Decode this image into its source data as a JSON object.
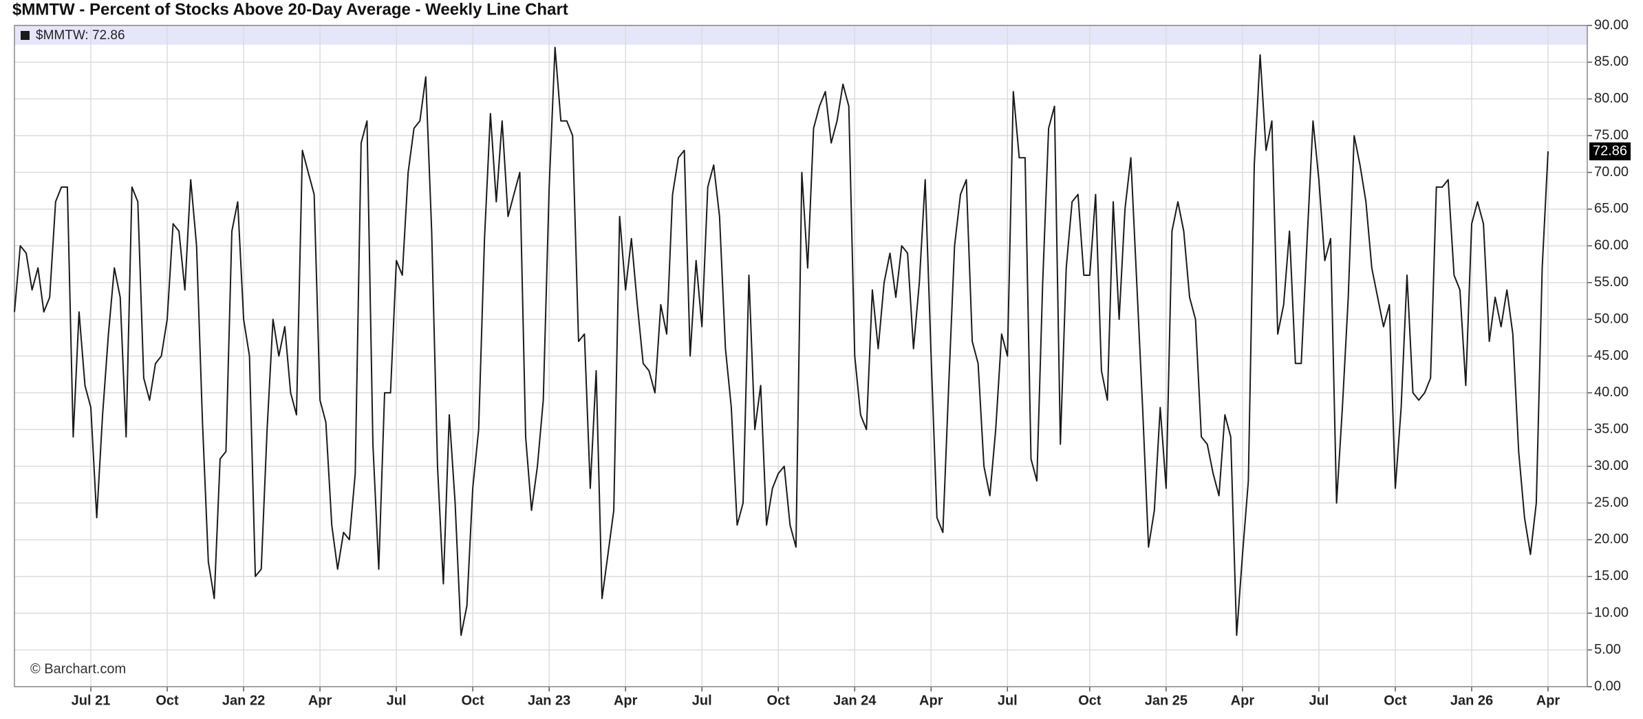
{
  "chart_data": {
    "type": "line",
    "title": "$MMTW - Percent of Stocks Above 20-Day Average - Weekly Line Chart",
    "watermark": "© Barchart.com",
    "last_label": "72.86",
    "categories": [
      null,
      null,
      null,
      null,
      null,
      null,
      null,
      null,
      null,
      null,
      null,
      null,
      null,
      "Jul 21",
      null,
      null,
      null,
      null,
      null,
      null,
      null,
      null,
      null,
      null,
      null,
      null,
      "Oct",
      null,
      null,
      null,
      null,
      null,
      null,
      null,
      null,
      null,
      null,
      null,
      null,
      "Jan 22",
      null,
      null,
      null,
      null,
      null,
      null,
      null,
      null,
      null,
      null,
      null,
      null,
      "Apr",
      null,
      null,
      null,
      null,
      null,
      null,
      null,
      null,
      null,
      null,
      null,
      null,
      "Jul",
      null,
      null,
      null,
      null,
      null,
      null,
      null,
      null,
      null,
      null,
      null,
      null,
      "Oct",
      null,
      null,
      null,
      null,
      null,
      null,
      null,
      null,
      null,
      null,
      null,
      null,
      "Jan 23",
      null,
      null,
      null,
      null,
      null,
      null,
      null,
      null,
      null,
      null,
      null,
      null,
      "Apr",
      null,
      null,
      null,
      null,
      null,
      null,
      null,
      null,
      null,
      null,
      null,
      null,
      "Jul",
      null,
      null,
      null,
      null,
      null,
      null,
      null,
      null,
      null,
      null,
      null,
      null,
      "Oct",
      null,
      null,
      null,
      null,
      null,
      null,
      null,
      null,
      null,
      null,
      null,
      null,
      "Jan 24",
      null,
      null,
      null,
      null,
      null,
      null,
      null,
      null,
      null,
      null,
      null,
      null,
      "Apr",
      null,
      null,
      null,
      null,
      null,
      null,
      null,
      null,
      null,
      null,
      null,
      null,
      "Jul",
      null,
      null,
      null,
      null,
      null,
      null,
      null,
      null,
      null,
      null,
      null,
      null,
      null,
      "Oct",
      null,
      null,
      null,
      null,
      null,
      null,
      null,
      null,
      null,
      null,
      null,
      null,
      "Jan 25",
      null,
      null,
      null,
      null,
      null,
      null,
      null,
      null,
      null,
      null,
      null,
      null,
      "Apr",
      null,
      null,
      null,
      null,
      null,
      null,
      null,
      null,
      null,
      null,
      null,
      null,
      "Jul",
      null,
      null,
      null,
      null,
      null,
      null,
      null,
      null,
      null,
      null,
      null,
      null,
      "Oct",
      null,
      null,
      null,
      null,
      null,
      null,
      null,
      null,
      null,
      null,
      null,
      null,
      "Jan 26",
      null,
      null,
      null,
      null,
      null,
      null,
      null,
      null,
      null,
      null,
      null,
      null,
      "Apr"
    ],
    "series": [
      {
        "name": "$MMTW",
        "color": "#1a1a1a",
        "values": [
          51,
          60,
          59,
          54,
          57,
          51,
          53,
          66,
          68,
          68,
          34,
          51,
          41,
          38,
          23,
          37,
          48,
          57,
          53,
          34,
          68,
          66,
          42,
          39,
          44,
          45,
          50,
          63,
          62,
          54,
          69,
          60,
          36,
          17,
          12,
          31,
          32,
          62,
          66,
          50,
          45,
          15,
          16,
          35,
          50,
          45,
          49,
          40,
          37,
          73,
          70,
          67,
          39,
          36,
          22,
          16,
          21,
          20,
          29,
          74,
          77,
          33,
          16,
          40,
          40,
          58,
          56,
          70,
          76,
          77,
          83,
          62,
          30,
          14,
          37,
          25,
          7,
          11,
          27,
          35,
          61,
          78,
          66,
          77,
          64,
          67,
          70,
          34,
          24,
          30,
          39,
          68,
          87,
          77,
          77,
          75,
          47,
          48,
          27,
          43,
          12,
          18,
          24,
          64,
          54,
          61,
          52,
          44,
          43,
          40,
          52,
          48,
          67,
          72,
          73,
          45,
          58,
          49,
          68,
          71,
          64,
          46,
          38,
          22,
          25,
          56,
          35,
          41,
          22,
          27,
          29,
          30,
          22,
          19,
          70,
          57,
          76,
          79,
          81,
          74,
          77,
          82,
          79,
          45,
          37,
          35,
          54,
          46,
          55,
          59,
          53,
          60,
          59,
          46,
          55,
          69,
          45,
          23,
          21,
          41,
          60,
          67,
          69,
          47,
          44,
          30,
          26,
          35,
          48,
          45,
          81,
          72,
          72,
          31,
          28,
          55,
          76,
          79,
          33,
          57,
          66,
          67,
          56,
          56,
          67,
          43,
          39,
          66,
          50,
          65,
          72,
          55,
          38,
          19,
          24,
          38,
          27,
          62,
          66,
          62,
          53,
          50,
          34,
          33,
          29,
          26,
          37,
          34,
          7,
          18,
          28,
          71,
          86,
          73,
          77,
          48,
          52,
          62,
          44,
          44,
          61,
          77,
          69,
          58,
          61,
          25,
          38,
          53,
          75,
          71,
          66,
          57,
          53,
          49,
          52,
          27,
          38,
          56,
          40,
          39,
          40,
          42,
          68,
          68,
          69,
          56,
          54,
          41,
          63,
          66,
          63,
          47,
          53,
          49,
          54,
          48,
          32,
          23,
          18,
          25,
          57,
          72.86
        ]
      }
    ],
    "ylim": [
      0,
      90
    ],
    "yticks": [
      {
        "value": 0,
        "label": "0.00"
      },
      {
        "value": 5,
        "label": "5.00"
      },
      {
        "value": 10,
        "label": "10.00"
      },
      {
        "value": 15,
        "label": "15.00"
      },
      {
        "value": 20,
        "label": "20.00"
      },
      {
        "value": 25,
        "label": "25.00"
      },
      {
        "value": 30,
        "label": "30.00"
      },
      {
        "value": 35,
        "label": "35.00"
      },
      {
        "value": 40,
        "label": "40.00"
      },
      {
        "value": 45,
        "label": "45.00"
      },
      {
        "value": 50,
        "label": "50.00"
      },
      {
        "value": 55,
        "label": "55.00"
      },
      {
        "value": 60,
        "label": "60.00"
      },
      {
        "value": 65,
        "label": "65.00"
      },
      {
        "value": 70,
        "label": "70.00"
      },
      {
        "value": 75,
        "label": "75.00"
      },
      {
        "value": 80,
        "label": "80.00"
      },
      {
        "value": 85,
        "label": "85.00"
      },
      {
        "value": 90,
        "label": "90.00"
      }
    ],
    "grid": true
  }
}
